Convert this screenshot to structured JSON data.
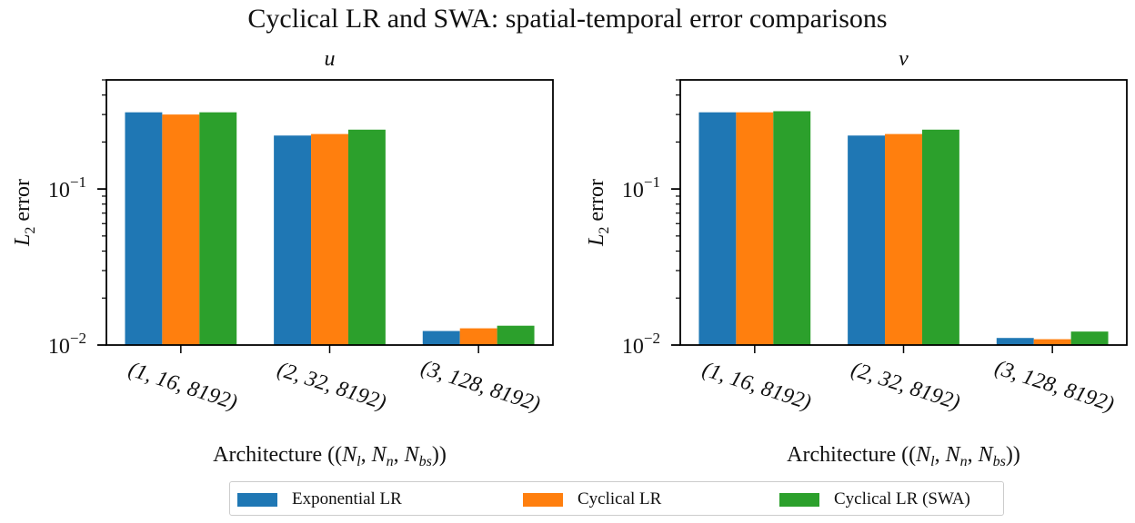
{
  "figure_title": "Cyclical LR and SWA: spatial-temporal error comparisons",
  "colors": {
    "exponential": "#1f77b4",
    "cyclical": "#ff7f0e",
    "swa": "#2ca02c"
  },
  "legend": [
    {
      "label": "Exponential LR",
      "color": "#1f77b4"
    },
    {
      "label": "Cyclical LR",
      "color": "#ff7f0e"
    },
    {
      "label": "Cyclical LR (SWA)",
      "color": "#2ca02c"
    }
  ],
  "chart_data": [
    {
      "type": "bar",
      "title": "u",
      "xlabel": "Architecture ((N_l, N_n, N_bs))",
      "ylabel": "L_2 error",
      "yscale": "log",
      "ylim": [
        0.01,
        0.5
      ],
      "yticks": [
        0.01,
        0.1
      ],
      "categories": [
        "(1, 16, 8192)",
        "(2, 32, 8192)",
        "(3, 128, 8192)"
      ],
      "series": [
        {
          "name": "Exponential LR",
          "values": [
            0.31,
            0.22,
            0.0123
          ]
        },
        {
          "name": "Cyclical LR",
          "values": [
            0.3,
            0.225,
            0.0128
          ]
        },
        {
          "name": "Cyclical LR (SWA)",
          "values": [
            0.31,
            0.24,
            0.0133
          ]
        }
      ],
      "grid": false,
      "legend": "below"
    },
    {
      "type": "bar",
      "title": "v",
      "xlabel": "Architecture ((N_l, N_n, N_bs))",
      "ylabel": "L_2 error",
      "yscale": "log",
      "ylim": [
        0.01,
        0.5
      ],
      "yticks": [
        0.01,
        0.1
      ],
      "categories": [
        "(1, 16, 8192)",
        "(2, 32, 8192)",
        "(3, 128, 8192)"
      ],
      "series": [
        {
          "name": "Exponential LR",
          "values": [
            0.31,
            0.22,
            0.0111
          ]
        },
        {
          "name": "Cyclical LR",
          "values": [
            0.31,
            0.225,
            0.0109
          ]
        },
        {
          "name": "Cyclical LR (SWA)",
          "values": [
            0.315,
            0.24,
            0.0122
          ]
        }
      ],
      "grid": false,
      "legend": "below"
    }
  ]
}
